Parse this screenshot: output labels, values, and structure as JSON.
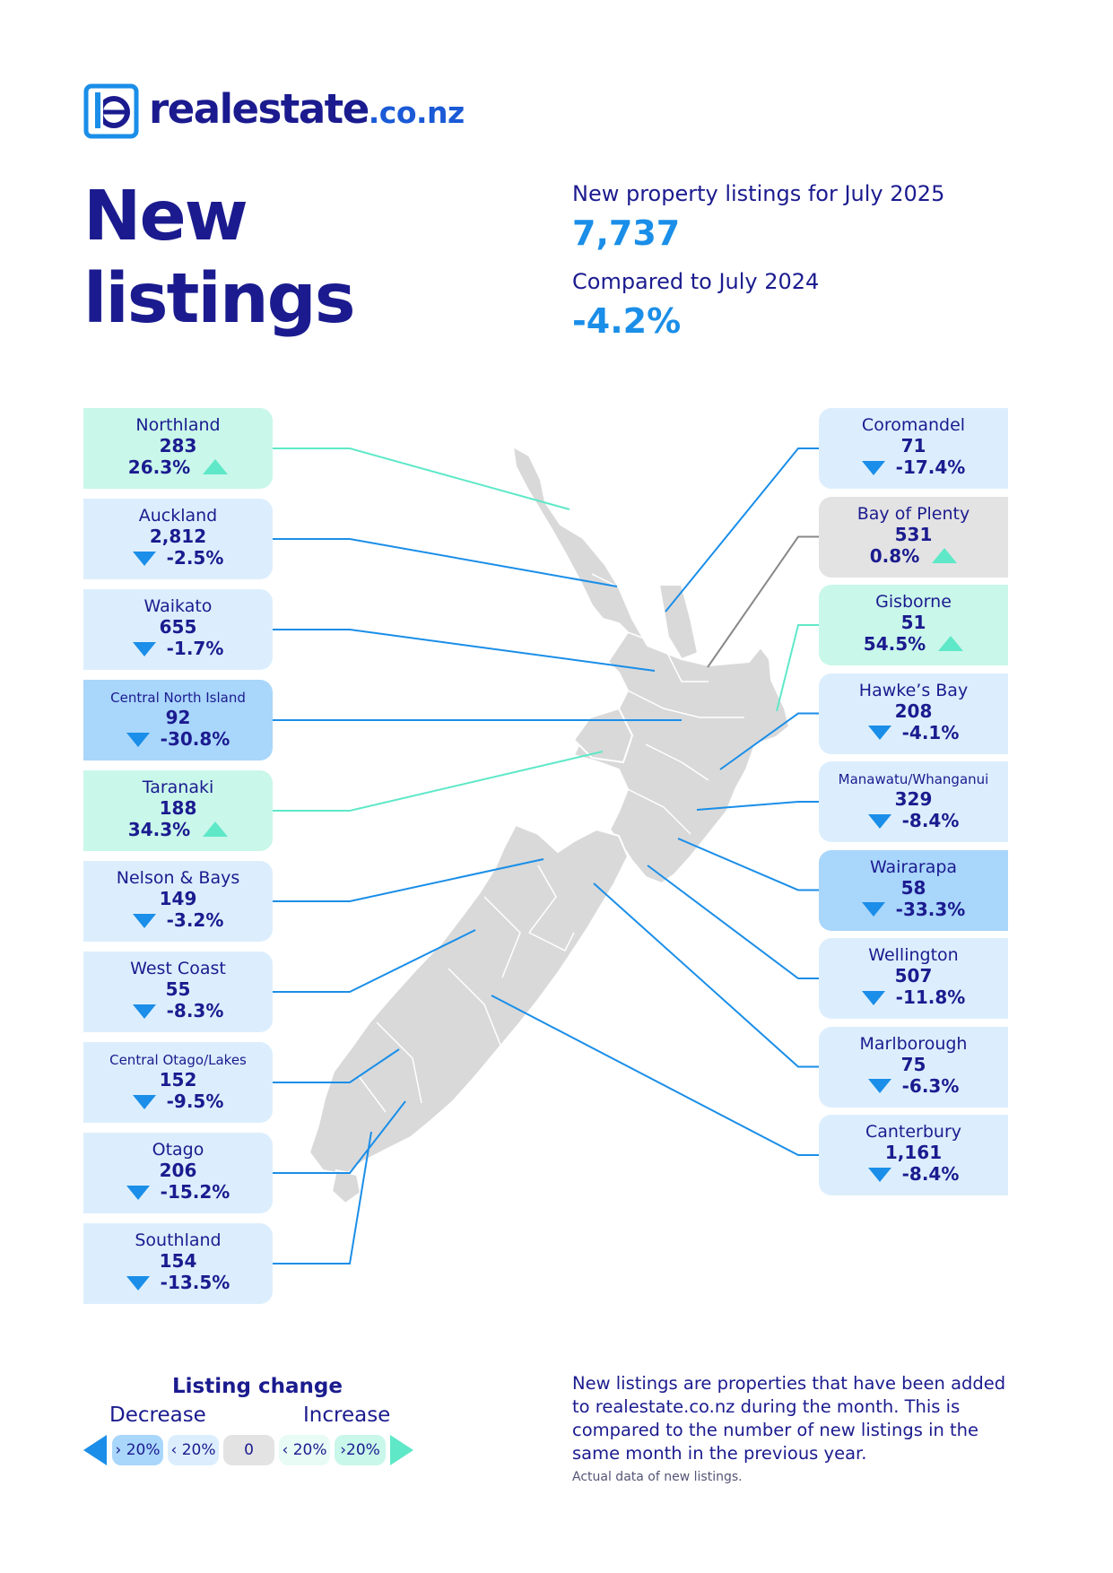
{
  "brand": {
    "name": "realestate",
    "domain": ".co.nz"
  },
  "title": {
    "line1": "New",
    "line2": "listings"
  },
  "summary": {
    "listings_label": "New property listings for July 2025",
    "listings_value": "7,737",
    "compare_label": "Compared to July 2024",
    "compare_value": "-4.2%"
  },
  "regions_left": [
    {
      "name": "Northland",
      "count": "283",
      "change": "26.3%",
      "direction": "up",
      "band": "increase-over-20"
    },
    {
      "name": "Auckland",
      "count": "2,812",
      "change": "-2.5%",
      "direction": "down",
      "band": "decrease-under-20"
    },
    {
      "name": "Waikato",
      "count": "655",
      "change": "-1.7%",
      "direction": "down",
      "band": "decrease-under-20"
    },
    {
      "name": "Central North Island",
      "count": "92",
      "change": "-30.8%",
      "direction": "down",
      "band": "decrease-over-20"
    },
    {
      "name": "Taranaki",
      "count": "188",
      "change": "34.3%",
      "direction": "up",
      "band": "increase-over-20"
    },
    {
      "name": "Nelson & Bays",
      "count": "149",
      "change": "-3.2%",
      "direction": "down",
      "band": "decrease-under-20"
    },
    {
      "name": "West Coast",
      "count": "55",
      "change": "-8.3%",
      "direction": "down",
      "band": "decrease-under-20"
    },
    {
      "name": "Central Otago/Lakes",
      "count": "152",
      "change": "-9.5%",
      "direction": "down",
      "band": "decrease-under-20"
    },
    {
      "name": "Otago",
      "count": "206",
      "change": "-15.2%",
      "direction": "down",
      "band": "decrease-under-20"
    },
    {
      "name": "Southland",
      "count": "154",
      "change": "-13.5%",
      "direction": "down",
      "band": "decrease-under-20"
    }
  ],
  "regions_right": [
    {
      "name": "Coromandel",
      "count": "71",
      "change": "-17.4%",
      "direction": "down",
      "band": "decrease-under-20"
    },
    {
      "name": "Bay of Plenty",
      "count": "531",
      "change": "0.8%",
      "direction": "up",
      "band": "neutral"
    },
    {
      "name": "Gisborne",
      "count": "51",
      "change": "54.5%",
      "direction": "up",
      "band": "increase-over-20"
    },
    {
      "name": "Hawke’s Bay",
      "count": "208",
      "change": "-4.1%",
      "direction": "down",
      "band": "decrease-under-20"
    },
    {
      "name": "Manawatu/Whanganui",
      "count": "329",
      "change": "-8.4%",
      "direction": "down",
      "band": "decrease-under-20"
    },
    {
      "name": "Wairarapa",
      "count": "58",
      "change": "-33.3%",
      "direction": "down",
      "band": "decrease-over-20"
    },
    {
      "name": "Wellington",
      "count": "507",
      "change": "-11.8%",
      "direction": "down",
      "band": "decrease-under-20"
    },
    {
      "name": "Marlborough",
      "count": "75",
      "change": "-6.3%",
      "direction": "down",
      "band": "decrease-under-20"
    },
    {
      "name": "Canterbury",
      "count": "1,161",
      "change": "-8.4%",
      "direction": "down",
      "band": "decrease-under-20"
    }
  ],
  "band_colors": {
    "decrease-over-20": "#a9d6fb",
    "decrease-under-20": "#dceefd",
    "neutral": "#e3e3e3",
    "increase-under-20": "#e8fbf5",
    "increase-over-20": "#c9f7ea"
  },
  "legend": {
    "title": "Listing change",
    "decrease": "Decrease",
    "increase": "Increase",
    "swatches": [
      "› 20%",
      "‹ 20%",
      "0",
      "‹ 20%",
      "›20%"
    ]
  },
  "footnote": "New listings are properties that have been added to realestate.co.nz during the month. This is compared to the number of new listings in the same month in the previous year.",
  "footnote_small": "Actual data of new listings."
}
